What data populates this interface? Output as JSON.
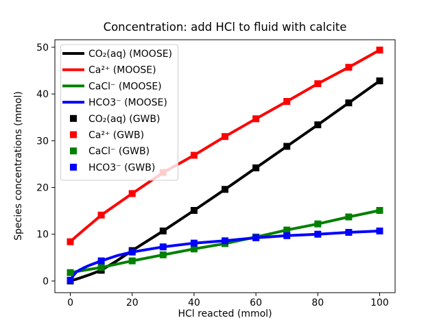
{
  "chart_data": {
    "type": "line",
    "title": "Concentration: add HCl to fluid with calcite",
    "xlabel": "HCl reacted (mmol)",
    "ylabel": "Species concentrations (mmol)",
    "xlim": [
      -5,
      105
    ],
    "ylim": [
      -2.5,
      51.6
    ],
    "xticks": [
      0,
      20,
      40,
      60,
      80,
      100
    ],
    "yticks": [
      0,
      10,
      20,
      30,
      40,
      50
    ],
    "grid": false,
    "legend_position": "upper left",
    "colors": {
      "black": "#000000",
      "red": "#ff0000",
      "green": "#008000",
      "blue": "#0000ff"
    },
    "marker_x": [
      0,
      10,
      20,
      30,
      40,
      50,
      60,
      70,
      80,
      90,
      100
    ],
    "series": [
      {
        "name": "CO₂(aq) (MOOSE)",
        "style": "line",
        "color": "#000000",
        "x": [
          0,
          2,
          4,
          6,
          8,
          10,
          15,
          20,
          30,
          40,
          50,
          60,
          70,
          80,
          90,
          100
        ],
        "y": [
          0.0,
          0.4,
          0.85,
          1.3,
          1.8,
          2.3,
          4.3,
          6.5,
          10.7,
          15.1,
          19.6,
          24.2,
          28.8,
          33.4,
          38.1,
          42.8
        ]
      },
      {
        "name": "Ca²⁺ (MOOSE)",
        "style": "line",
        "color": "#ff0000",
        "x": [
          0,
          2,
          5,
          7,
          10,
          20,
          30,
          40,
          50,
          60,
          70,
          80,
          90,
          100
        ],
        "y": [
          8.4,
          9.6,
          11.3,
          12.4,
          14.1,
          18.7,
          23.2,
          26.9,
          30.9,
          34.7,
          38.4,
          42.2,
          45.7,
          49.4
        ]
      },
      {
        "name": "CaCl⁻ (MOOSE)",
        "style": "line",
        "color": "#008000",
        "x": [
          0,
          5,
          10,
          20,
          30,
          40,
          50,
          60,
          70,
          80,
          90,
          100
        ],
        "y": [
          1.8,
          2.35,
          2.9,
          4.3,
          5.6,
          6.85,
          8.0,
          9.4,
          10.9,
          12.2,
          13.7,
          15.1
        ]
      },
      {
        "name": "HCO3⁻ (MOOSE)",
        "style": "line",
        "color": "#0000ff",
        "x": [
          0,
          1,
          2,
          3,
          4,
          6,
          8,
          10,
          15,
          20,
          30,
          40,
          50,
          60,
          70,
          80,
          90,
          100
        ],
        "y": [
          0.15,
          1.2,
          1.95,
          2.35,
          2.7,
          3.3,
          3.8,
          4.3,
          5.4,
          6.2,
          7.3,
          8.1,
          8.6,
          9.25,
          9.7,
          10.0,
          10.4,
          10.7
        ]
      },
      {
        "name": "CO₂(aq) (GWB)",
        "style": "marker",
        "color": "#000000",
        "y": [
          0.0,
          2.3,
          6.5,
          10.7,
          15.1,
          19.6,
          24.2,
          28.8,
          33.4,
          38.1,
          42.8
        ]
      },
      {
        "name": "Ca²⁺ (GWB)",
        "style": "marker",
        "color": "#ff0000",
        "y": [
          8.4,
          14.1,
          18.7,
          23.2,
          26.9,
          30.9,
          34.7,
          38.4,
          42.2,
          45.7,
          49.4
        ]
      },
      {
        "name": "CaCl⁻ (GWB)",
        "style": "marker",
        "color": "#008000",
        "y": [
          1.8,
          2.9,
          4.3,
          5.6,
          6.85,
          8.0,
          9.4,
          10.9,
          12.2,
          13.7,
          15.1
        ]
      },
      {
        "name": "HCO3⁻ (GWB)",
        "style": "marker",
        "color": "#0000ff",
        "y": [
          0.15,
          4.3,
          6.2,
          7.3,
          8.1,
          8.6,
          9.25,
          9.7,
          10.0,
          10.4,
          10.7
        ]
      }
    ]
  }
}
